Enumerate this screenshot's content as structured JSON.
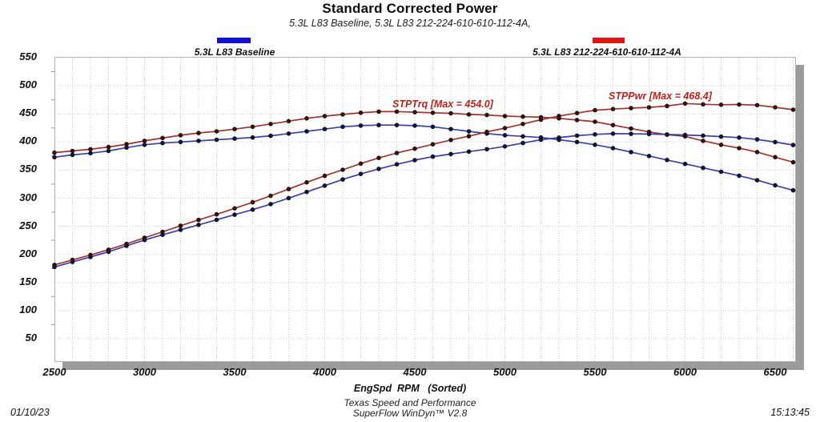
{
  "header": {
    "title": "Standard Corrected Power",
    "subtitle": "5.3L L83 Baseline, 5.3L L83 212-224-610-610-112-4A,"
  },
  "legend": {
    "items": [
      {
        "label": "5.3L L83 Baseline",
        "color": "#1111d6"
      },
      {
        "label": "5.3L L83 212-224-610-610-112-4A",
        "color": "#de1812"
      }
    ]
  },
  "annotations": {
    "torque_max": {
      "text": "STPTrq [Max = 454.0]",
      "value": 454.0
    },
    "power_max": {
      "text": "STPPwr [Max = 468.4]",
      "value": 468.4
    }
  },
  "x_axis": {
    "label": "EngSpd  RPM   (Sorted)"
  },
  "footer": {
    "org": "Texas Speed and Performance",
    "app": "SuperFlow WinDyn™ V2.8",
    "date": "01/10/23",
    "time": "15:13:45"
  },
  "chart_data": {
    "type": "line",
    "title": "Standard Corrected Power",
    "xlabel": "EngSpd  RPM   (Sorted)",
    "ylabel": "",
    "grid": "dotted",
    "legend_position": "top",
    "xlim": [
      2500,
      6610
    ],
    "ylim": [
      10,
      553
    ],
    "xticks": [
      2500,
      3000,
      3500,
      4000,
      4500,
      5000,
      5500,
      6000,
      6500
    ],
    "yticks": [
      50,
      100,
      150,
      200,
      250,
      300,
      350,
      400,
      450,
      500,
      550
    ],
    "x_rpm": [
      2500,
      2600,
      2700,
      2800,
      2900,
      3000,
      3100,
      3200,
      3300,
      3400,
      3500,
      3600,
      3700,
      3800,
      3900,
      4000,
      4100,
      4200,
      4300,
      4400,
      4500,
      4600,
      4700,
      4800,
      4900,
      5000,
      5100,
      5200,
      5300,
      5400,
      5500,
      5600,
      5700,
      5800,
      5900,
      6000,
      6100,
      6200,
      6300,
      6400,
      6500,
      6600
    ],
    "series": [
      {
        "name": "5.3L L83 Baseline STPTrq",
        "color": "#3940ad",
        "dot_color": "#15152a",
        "values": [
          373,
          377,
          380,
          384,
          390,
          395,
          398,
          400,
          402,
          404,
          406,
          408,
          411,
          415,
          419,
          423,
          427,
          429,
          430,
          430,
          429,
          427,
          423,
          419,
          415,
          412,
          410,
          408,
          404,
          400,
          395,
          389,
          382,
          375,
          368,
          361,
          354,
          347,
          340,
          332,
          323,
          314
        ]
      },
      {
        "name": "5.3L L83 Baseline STPPwr",
        "color": "#3940ad",
        "dot_color": "#15152a",
        "values": [
          177.6,
          186.6,
          195.4,
          204.7,
          215.3,
          225.6,
          234.9,
          243.7,
          252.6,
          261.5,
          270.6,
          279.6,
          289.5,
          300.2,
          311.1,
          322.2,
          333.3,
          343.1,
          352.1,
          360.2,
          367.6,
          374.0,
          378.5,
          382.9,
          387.2,
          392.2,
          398.1,
          404.0,
          407.7,
          411.3,
          413.6,
          414.8,
          414.6,
          414.1,
          413.4,
          412.4,
          411.2,
          409.6,
          407.8,
          404.6,
          399.8,
          394.6
        ]
      },
      {
        "name": "5.3L L83 212-224-610-610-112-4A STPTrq",
        "color": "#a2332c",
        "dot_color": "#2a1512",
        "values": [
          381,
          384,
          387,
          391,
          396,
          402,
          407,
          412,
          416,
          419,
          423,
          427,
          432,
          437,
          442,
          446,
          449,
          452,
          454,
          454,
          453,
          452,
          451,
          449,
          448,
          446,
          445,
          444,
          442,
          439,
          436,
          430,
          424,
          418,
          413,
          410,
          402,
          395,
          389,
          382,
          373,
          364
        ]
      },
      {
        "name": "5.3L L83 212-224-610-610-112-4A STPPwr",
        "color": "#a2332c",
        "dot_color": "#2a1512",
        "values": [
          181.4,
          190.1,
          199.0,
          208.4,
          218.7,
          229.6,
          240.2,
          251.0,
          261.4,
          271.2,
          281.9,
          292.7,
          304.3,
          316.2,
          328.2,
          339.7,
          350.5,
          361.5,
          371.7,
          380.3,
          388.1,
          395.9,
          403.6,
          410.3,
          418.0,
          424.6,
          432.1,
          439.6,
          446.1,
          451.4,
          456.6,
          458.5,
          460.2,
          461.6,
          464.0,
          468.4,
          466.9,
          466.3,
          466.6,
          465.5,
          461.7,
          457.4
        ]
      }
    ]
  }
}
